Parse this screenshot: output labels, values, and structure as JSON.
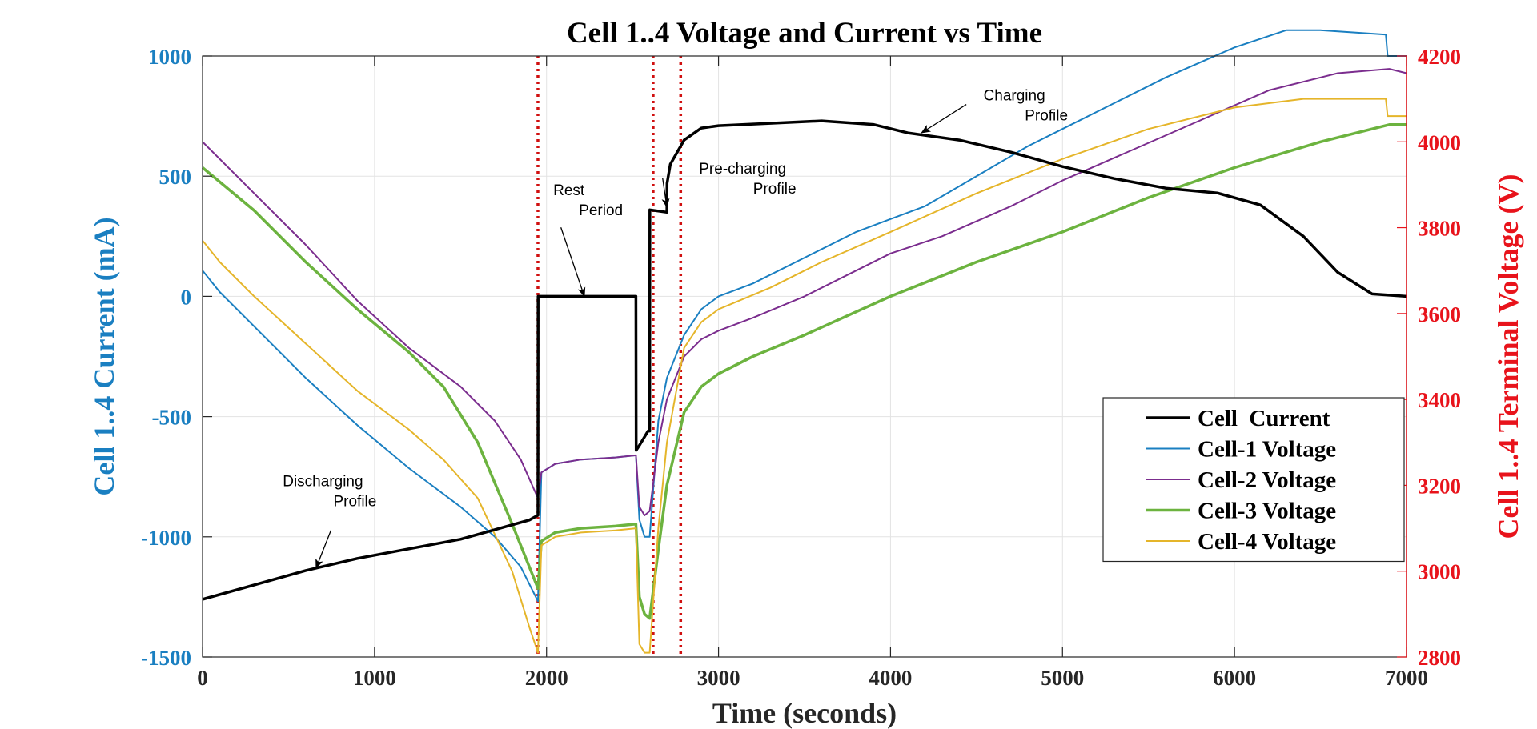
{
  "chart_data": {
    "type": "line",
    "title": "Cell 1..4 Voltage and Current vs Time",
    "xlabel": "Time (seconds)",
    "ylabel_left": "Cell 1..4 Current (mA)",
    "ylabel_right": "Cell 1..4 Terminal Voltage (V)",
    "xlim": [
      0,
      7000
    ],
    "ylim_left": [
      -1500,
      1000
    ],
    "ylim_right": [
      2800,
      4200
    ],
    "x_ticks": [
      0,
      1000,
      2000,
      3000,
      4000,
      5000,
      6000,
      7000
    ],
    "y_left_ticks": [
      -1500,
      -1000,
      -500,
      0,
      500,
      1000
    ],
    "y_right_ticks": [
      2800,
      3000,
      3200,
      3400,
      3600,
      3800,
      4000,
      4200
    ],
    "grid": true,
    "legend_position": "bottom-right",
    "colors": {
      "left_axis": "#1a7fc1",
      "right_axis": "#e8131b",
      "title": "#000000",
      "marker_lines": "#d01010"
    },
    "vertical_markers": [
      1950,
      2620,
      2780
    ],
    "series": [
      {
        "name": "Cell  Current",
        "axis": "left",
        "color": "#000000",
        "width": 3.5,
        "x": [
          0,
          300,
          600,
          900,
          1200,
          1500,
          1700,
          1900,
          1950,
          1951,
          2520,
          2521,
          2540,
          2590,
          2600,
          2601,
          2700,
          2701,
          2720,
          2800,
          2900,
          3000,
          3300,
          3600,
          3900,
          4100,
          4400,
          4700,
          5000,
          5300,
          5600,
          5900,
          6150,
          6400,
          6600,
          6800,
          7000
        ],
        "y": [
          -1260,
          -1200,
          -1140,
          -1090,
          -1050,
          -1010,
          -970,
          -930,
          -910,
          0,
          0,
          -640,
          -620,
          -560,
          -560,
          360,
          350,
          470,
          550,
          650,
          700,
          710,
          720,
          730,
          715,
          680,
          650,
          600,
          540,
          490,
          450,
          430,
          380,
          250,
          100,
          10,
          0
        ]
      },
      {
        "name": "Cell-1 Voltage",
        "axis": "right",
        "color": "#1a7fc1",
        "width": 2,
        "x": [
          0,
          100,
          300,
          600,
          900,
          1200,
          1500,
          1700,
          1850,
          1950,
          1970,
          2050,
          2200,
          2400,
          2520,
          2540,
          2570,
          2600,
          2650,
          2700,
          2800,
          2900,
          3000,
          3200,
          3500,
          3800,
          4000,
          4200,
          4500,
          4800,
          5000,
          5300,
          5600,
          6000,
          6300,
          6500,
          6880,
          6890,
          7000
        ],
        "y": [
          3700,
          3650,
          3570,
          3450,
          3340,
          3240,
          3150,
          3080,
          3010,
          2930,
          3230,
          3250,
          3260,
          3265,
          3270,
          3120,
          3080,
          3080,
          3350,
          3450,
          3550,
          3610,
          3640,
          3670,
          3730,
          3790,
          3820,
          3850,
          3920,
          3990,
          4030,
          4090,
          4150,
          4220,
          4260,
          4260,
          4250,
          4200,
          4200
        ]
      },
      {
        "name": "Cell-2 Voltage",
        "axis": "right",
        "color": "#7b2d8e",
        "width": 2,
        "x": [
          0,
          300,
          600,
          900,
          1200,
          1500,
          1700,
          1850,
          1950,
          1970,
          2050,
          2200,
          2400,
          2520,
          2540,
          2570,
          2600,
          2650,
          2700,
          2800,
          2900,
          3000,
          3200,
          3500,
          3800,
          4000,
          4300,
          4700,
          5000,
          5400,
          5800,
          6200,
          6600,
          6900,
          7000
        ],
        "y": [
          4000,
          3880,
          3760,
          3630,
          3520,
          3430,
          3350,
          3260,
          3170,
          3230,
          3250,
          3260,
          3265,
          3270,
          3150,
          3130,
          3140,
          3300,
          3400,
          3500,
          3540,
          3560,
          3590,
          3640,
          3700,
          3740,
          3780,
          3850,
          3910,
          3980,
          4050,
          4120,
          4160,
          4170,
          4160
        ]
      },
      {
        "name": "Cell-3 Voltage",
        "axis": "right",
        "color": "#6cb33f",
        "width": 3.5,
        "x": [
          0,
          300,
          600,
          900,
          1200,
          1400,
          1600,
          1800,
          1950,
          1970,
          2050,
          2200,
          2400,
          2520,
          2540,
          2570,
          2600,
          2650,
          2700,
          2800,
          2900,
          3000,
          3200,
          3500,
          4000,
          4500,
          5000,
          5500,
          6000,
          6500,
          6900,
          7000
        ],
        "y": [
          3940,
          3840,
          3720,
          3610,
          3510,
          3430,
          3300,
          3110,
          2960,
          3070,
          3090,
          3100,
          3105,
          3110,
          2940,
          2900,
          2890,
          3050,
          3200,
          3370,
          3430,
          3460,
          3500,
          3550,
          3640,
          3720,
          3790,
          3870,
          3940,
          4000,
          4040,
          4040
        ]
      },
      {
        "name": "Cell-4 Voltage",
        "axis": "right",
        "color": "#e5b52a",
        "width": 2,
        "x": [
          0,
          100,
          300,
          600,
          900,
          1200,
          1400,
          1600,
          1800,
          1900,
          1950,
          1970,
          2050,
          2200,
          2400,
          2520,
          2540,
          2570,
          2600,
          2650,
          2700,
          2800,
          2900,
          3000,
          3300,
          3600,
          4000,
          4500,
          5000,
          5500,
          6000,
          6400,
          6880,
          6890,
          7000
        ],
        "y": [
          3770,
          3720,
          3640,
          3530,
          3420,
          3330,
          3260,
          3170,
          3000,
          2870,
          2810,
          3060,
          3080,
          3090,
          3095,
          3100,
          2830,
          2810,
          2810,
          3100,
          3300,
          3520,
          3580,
          3610,
          3660,
          3720,
          3790,
          3880,
          3960,
          4030,
          4080,
          4100,
          4100,
          4060,
          4060
        ]
      }
    ],
    "annotations": [
      {
        "lines": [
          "Discharging",
          "Profile"
        ],
        "text_x": 700,
        "text_y": -790,
        "arrow_x": 660,
        "arrow_y": -1130
      },
      {
        "lines": [
          "Rest",
          "Period"
        ],
        "text_x": 2130,
        "text_y": 420,
        "arrow_x": 2220,
        "arrow_y": 0
      },
      {
        "lines": [
          "Pre-charging",
          "Profile"
        ],
        "text_x": 3140,
        "text_y": 510,
        "arrow_x": 2700,
        "arrow_y": 370
      },
      {
        "lines": [
          "Charging",
          "Profile"
        ],
        "text_x": 4720,
        "text_y": 815,
        "arrow_x": 4180,
        "arrow_y": 680
      }
    ]
  }
}
